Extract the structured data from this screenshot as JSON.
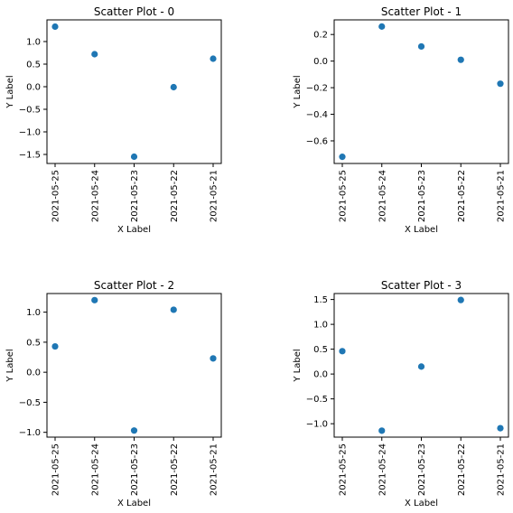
{
  "chart_data": [
    {
      "type": "scatter",
      "title": "Scatter Plot - 0",
      "xlabel": "X Label",
      "ylabel": "Y Label",
      "x": [
        "2021-05-25",
        "2021-05-24",
        "2021-05-23",
        "2021-05-22",
        "2021-05-21"
      ],
      "y": [
        1.33,
        0.72,
        -1.55,
        -0.01,
        0.62
      ],
      "ylim": [
        -1.7,
        1.48
      ],
      "yticks": [
        1.0,
        0.5,
        0.0,
        -0.5,
        -1.0,
        -1.5
      ],
      "ytick_labels": [
        "1.0",
        "0.5",
        "0.0",
        "−0.5",
        "−1.0",
        "−1.5"
      ],
      "grid": false,
      "color": "#1f77b4"
    },
    {
      "type": "scatter",
      "title": "Scatter Plot - 1",
      "xlabel": "X Label",
      "ylabel": "Y Label",
      "x": [
        "2021-05-25",
        "2021-05-24",
        "2021-05-23",
        "2021-05-22",
        "2021-05-21"
      ],
      "y": [
        -0.72,
        0.26,
        0.11,
        0.01,
        -0.17
      ],
      "ylim": [
        -0.77,
        0.31
      ],
      "yticks": [
        0.2,
        0.0,
        -0.2,
        -0.4,
        -0.6
      ],
      "ytick_labels": [
        "0.2",
        "0.0",
        "−0.2",
        "−0.4",
        "−0.6"
      ],
      "grid": false,
      "color": "#1f77b4"
    },
    {
      "type": "scatter",
      "title": "Scatter Plot - 2",
      "xlabel": "X Label",
      "ylabel": "Y Label",
      "x": [
        "2021-05-25",
        "2021-05-24",
        "2021-05-23",
        "2021-05-22",
        "2021-05-21"
      ],
      "y": [
        0.43,
        1.2,
        -0.97,
        1.04,
        0.23
      ],
      "ylim": [
        -1.08,
        1.31
      ],
      "yticks": [
        1.0,
        0.5,
        0.0,
        -0.5,
        -1.0
      ],
      "ytick_labels": [
        "1.0",
        "0.5",
        "0.0",
        "−0.5",
        "−1.0"
      ],
      "grid": false,
      "color": "#1f77b4"
    },
    {
      "type": "scatter",
      "title": "Scatter Plot - 3",
      "xlabel": "X Label",
      "ylabel": "Y Label",
      "x": [
        "2021-05-25",
        "2021-05-24",
        "2021-05-23",
        "2021-05-22",
        "2021-05-21"
      ],
      "y": [
        0.46,
        -1.14,
        0.15,
        1.49,
        -1.09
      ],
      "ylim": [
        -1.27,
        1.62
      ],
      "yticks": [
        1.5,
        1.0,
        0.5,
        0.0,
        -0.5,
        -1.0
      ],
      "ytick_labels": [
        "1.5",
        "1.0",
        "0.5",
        "0.0",
        "−0.5",
        "−1.0"
      ],
      "grid": false,
      "color": "#1f77b4"
    }
  ]
}
